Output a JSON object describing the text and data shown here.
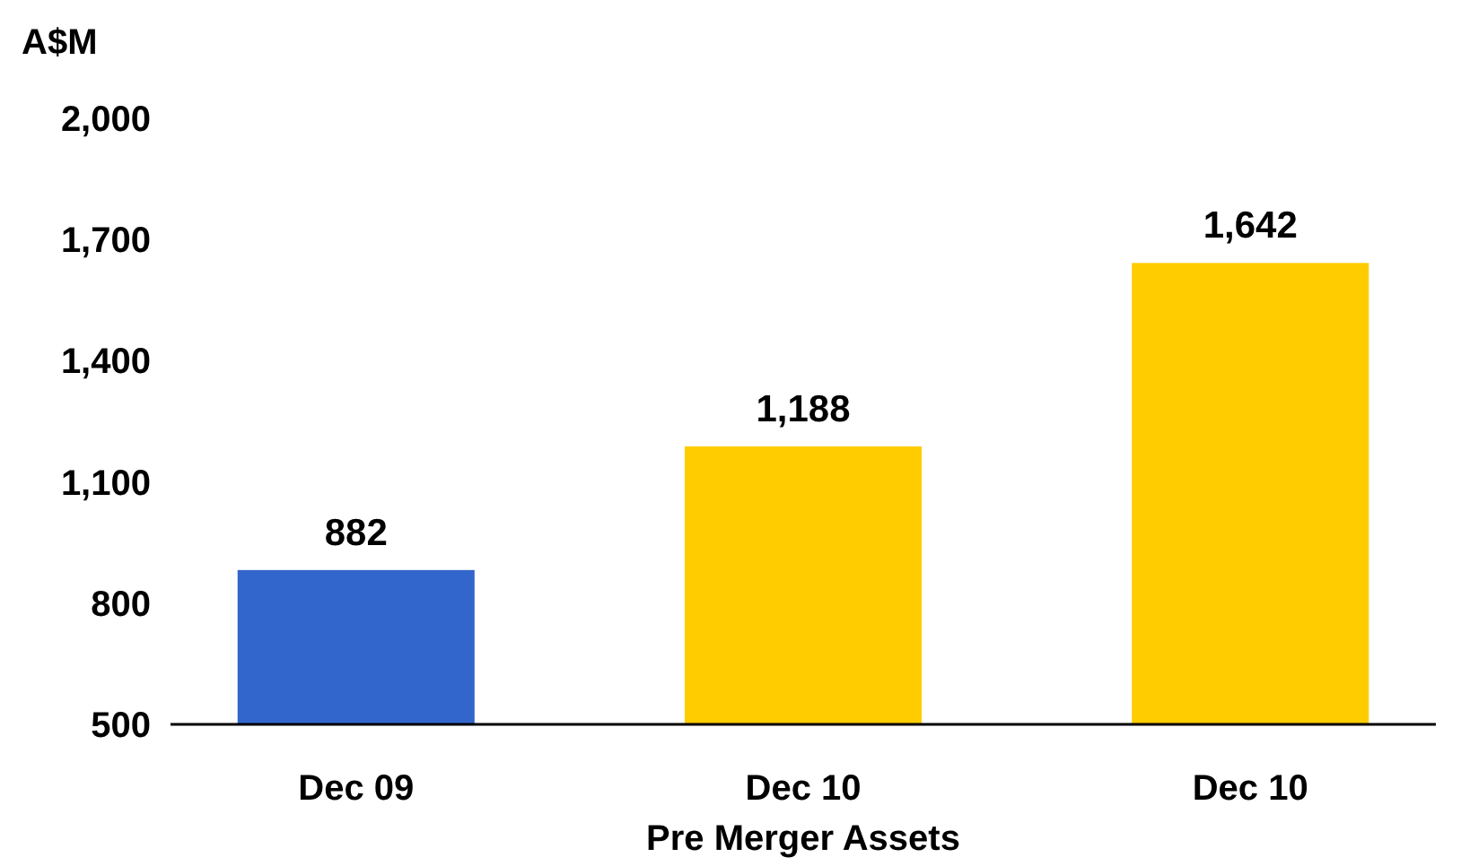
{
  "chart_data": {
    "type": "bar",
    "ylabel": "A$M",
    "categories": [
      "Dec 09",
      "Dec 10\nPre Merger Assets",
      "Dec 10"
    ],
    "values": [
      882,
      1188,
      1642
    ],
    "colors": [
      "#3366cc",
      "#ffcc00",
      "#ffcc00"
    ],
    "ylim": [
      500,
      2000
    ],
    "yticks": [
      {
        "value": 500,
        "label": "500"
      },
      {
        "value": 800,
        "label": "800"
      },
      {
        "value": 1100,
        "label": "1,100"
      },
      {
        "value": 1400,
        "label": "1,400"
      },
      {
        "value": 1700,
        "label": "1,700"
      },
      {
        "value": 2000,
        "label": "2,000"
      }
    ],
    "value_labels": [
      "882",
      "1,188",
      "1,642"
    ],
    "grid": false
  }
}
